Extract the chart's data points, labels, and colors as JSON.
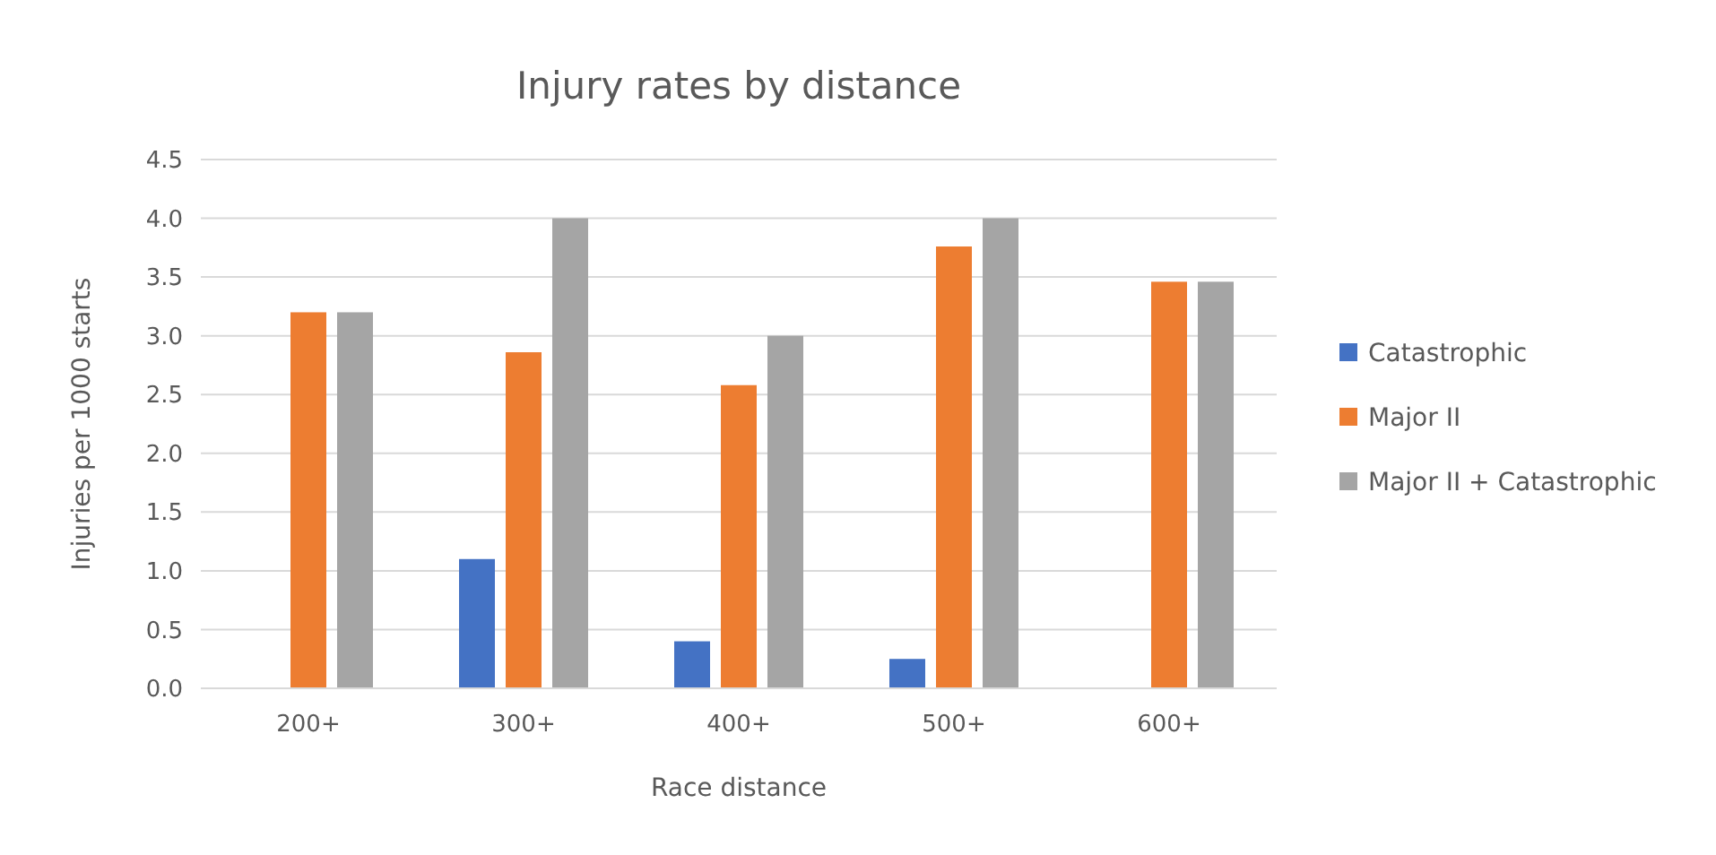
{
  "chart_data": {
    "type": "bar",
    "title": "Injury rates by distance",
    "xlabel": "Race distance",
    "ylabel": "Injuries per 1000 starts",
    "categories": [
      "200+",
      "300+",
      "400+",
      "500+",
      "600+"
    ],
    "series": [
      {
        "name": "Catastrophic",
        "color": "#4472c4",
        "values": [
          0,
          1.1,
          0.4,
          0.25,
          0
        ]
      },
      {
        "name": "Major II",
        "color": "#ed7d31",
        "values": [
          3.2,
          2.86,
          2.58,
          3.76,
          3.46
        ]
      },
      {
        "name": "Major II + Catastrophic",
        "color": "#a5a5a5",
        "values": [
          3.2,
          4.0,
          3.0,
          4.0,
          3.46
        ]
      }
    ],
    "ylim": [
      0,
      4.5
    ],
    "yticks": [
      {
        "value": 0,
        "label": "0.0"
      },
      {
        "value": 0.5,
        "label": "0.5"
      },
      {
        "value": 1,
        "label": "1.0"
      },
      {
        "value": 1.5,
        "label": "1.5"
      },
      {
        "value": 2,
        "label": "2.0"
      },
      {
        "value": 2.5,
        "label": "2.5"
      },
      {
        "value": 3,
        "label": "3.0"
      },
      {
        "value": 3.5,
        "label": "3.5"
      },
      {
        "value": 4,
        "label": "4.0"
      },
      {
        "value": 4.5,
        "label": "4.5"
      }
    ],
    "grid": "y",
    "legend": "right"
  }
}
